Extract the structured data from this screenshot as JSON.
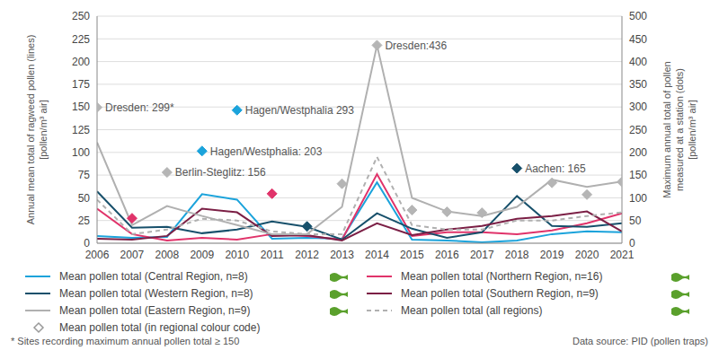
{
  "chart_data": {
    "type": "line",
    "ylabel": [
      "Annual mean total of ragweed pollen (lines)",
      "[pollen/m³ air]"
    ],
    "y2label": [
      "Maximum annual total of pollen",
      "measured at a station (dots)",
      "[pollen/m³ air]"
    ],
    "x": [
      2006,
      2007,
      2008,
      2009,
      2010,
      2011,
      2012,
      2013,
      2014,
      2015,
      2016,
      2017,
      2018,
      2019,
      2020,
      2021
    ],
    "xlim": [
      2006,
      2021
    ],
    "xticks": [
      2006,
      2007,
      2008,
      2009,
      2010,
      2011,
      2012,
      2013,
      2014,
      2015,
      2016,
      2017,
      2018,
      2019,
      2020,
      2021
    ],
    "ylim": [
      0,
      250
    ],
    "yticks": [
      0,
      25,
      50,
      75,
      100,
      125,
      150,
      175,
      200,
      225,
      250
    ],
    "y2lim": [
      0,
      500
    ],
    "y2ticks": [
      0,
      50,
      100,
      150,
      200,
      250,
      300,
      350,
      400,
      450,
      500
    ],
    "grid": true,
    "series": [
      {
        "name": "Mean pollen total (Central Region, n=8)",
        "type": "line",
        "color": "#1ba3db",
        "line_style": "solid",
        "values": [
          8,
          6,
          7,
          54,
          48,
          5,
          6,
          5,
          67,
          4,
          3,
          1,
          3,
          10,
          13,
          12
        ]
      },
      {
        "name": "Mean pollen total (Northern Region, n=16)",
        "type": "line",
        "color": "#e0336a",
        "line_style": "solid",
        "values": [
          38,
          10,
          3,
          6,
          4,
          10,
          8,
          4,
          76,
          8,
          12,
          12,
          10,
          14,
          22,
          33
        ]
      },
      {
        "name": "Mean pollen total (Western Region, n=8)",
        "type": "line",
        "color": "#17506b",
        "line_style": "solid",
        "values": [
          57,
          17,
          18,
          11,
          15,
          24,
          18,
          4,
          33,
          16,
          6,
          12,
          52,
          19,
          18,
          22
        ]
      },
      {
        "name": "Mean pollen total (Southern Region, n=9)",
        "type": "line",
        "color": "#7b1f45",
        "line_style": "solid",
        "values": [
          5,
          4,
          8,
          38,
          34,
          8,
          9,
          3,
          22,
          9,
          15,
          19,
          27,
          30,
          35,
          13
        ]
      },
      {
        "name": "Mean pollen total (Eastern Region, n=9)",
        "type": "line",
        "color": "#b0b0b0",
        "line_style": "solid",
        "values": [
          111,
          20,
          41,
          30,
          20,
          10,
          10,
          40,
          218,
          50,
          35,
          30,
          40,
          70,
          62,
          68
        ]
      },
      {
        "name": "Mean pollen total (all regions)",
        "type": "line",
        "color": "#b0b0b0",
        "line_style": "dashed",
        "values": [
          48,
          10,
          15,
          27,
          25,
          13,
          10,
          10,
          95,
          20,
          15,
          15,
          25,
          25,
          30,
          34
        ]
      },
      {
        "name": "Mean pollen total (in regional colour code)",
        "type": "scatter",
        "axis": "y2",
        "marker": "diamond",
        "color": "#999999",
        "values": [
          299,
          55,
          156,
          203,
          293,
          109,
          37,
          131,
          436,
          73,
          69,
          67,
          165,
          133,
          107,
          135
        ],
        "colors": [
          "#b5b5b5",
          "#e0336a",
          "#b5b5b5",
          "#1ba3db",
          "#1ba3db",
          "#e0336a",
          "#17506b",
          "#b5b5b5",
          "#b5b5b5",
          "#b5b5b5",
          "#b5b5b5",
          "#b5b5b5",
          "#17506b",
          "#b5b5b5",
          "#b5b5b5",
          "#b5b5b5"
        ]
      }
    ],
    "annotations": [
      {
        "x": 2006,
        "y": 299,
        "text": "Dresden: 299*"
      },
      {
        "x": 2014,
        "y": 436,
        "text": "Dresden:436"
      },
      {
        "x": 2010,
        "y": 293,
        "text": "Hagen/Westphalia 293"
      },
      {
        "x": 2009,
        "y": 203,
        "text": "Hagen/Westphalia: 203"
      },
      {
        "x": 2008,
        "y": 156,
        "text": "Berlin-Steglitz: 156"
      },
      {
        "x": 2018,
        "y": 165,
        "text": "Aachen: 165"
      }
    ],
    "footnote": "* Sites recording maximum annual pollen total ≥ 150",
    "source": "Data source: PID (pollen traps)"
  }
}
